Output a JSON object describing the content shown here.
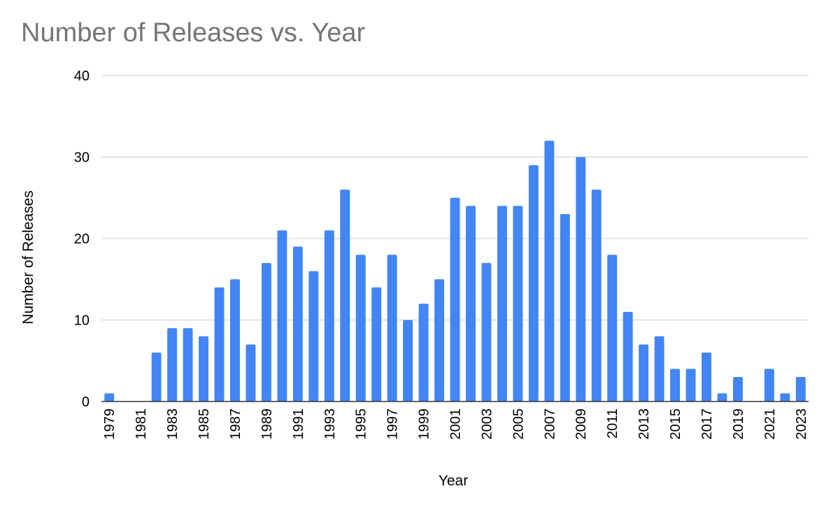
{
  "chart_data": {
    "type": "bar",
    "title": "Number of Releases vs. Year",
    "xlabel": "Year",
    "ylabel": "Number of Releases",
    "ylim": [
      0,
      40
    ],
    "yticks": [
      0,
      10,
      20,
      30,
      40
    ],
    "grid": true,
    "legend": "none",
    "bar_color": "#4285f4",
    "categories": [
      1979,
      1980,
      1981,
      1982,
      1983,
      1984,
      1985,
      1986,
      1987,
      1988,
      1989,
      1990,
      1991,
      1992,
      1993,
      1994,
      1995,
      1996,
      1997,
      1998,
      1999,
      2000,
      2001,
      2002,
      2003,
      2004,
      2005,
      2006,
      2007,
      2008,
      2009,
      2010,
      2011,
      2012,
      2013,
      2014,
      2015,
      2016,
      2017,
      2018,
      2019,
      2020,
      2021,
      2022,
      2023
    ],
    "values": [
      1,
      0,
      0,
      6,
      9,
      9,
      8,
      14,
      15,
      7,
      17,
      21,
      19,
      16,
      21,
      26,
      18,
      14,
      18,
      10,
      12,
      15,
      25,
      24,
      17,
      24,
      24,
      29,
      32,
      23,
      30,
      26,
      18,
      11,
      7,
      8,
      4,
      4,
      6,
      1,
      3,
      0,
      4,
      1,
      3
    ],
    "x_tick_labels": [
      "1979",
      "1981",
      "1983",
      "1985",
      "1987",
      "1989",
      "1991",
      "1993",
      "1995",
      "1997",
      "1999",
      "2001",
      "2003",
      "2005",
      "2007",
      "2009",
      "2011",
      "2013",
      "2015",
      "2017",
      "2019",
      "2021",
      "2023"
    ]
  }
}
